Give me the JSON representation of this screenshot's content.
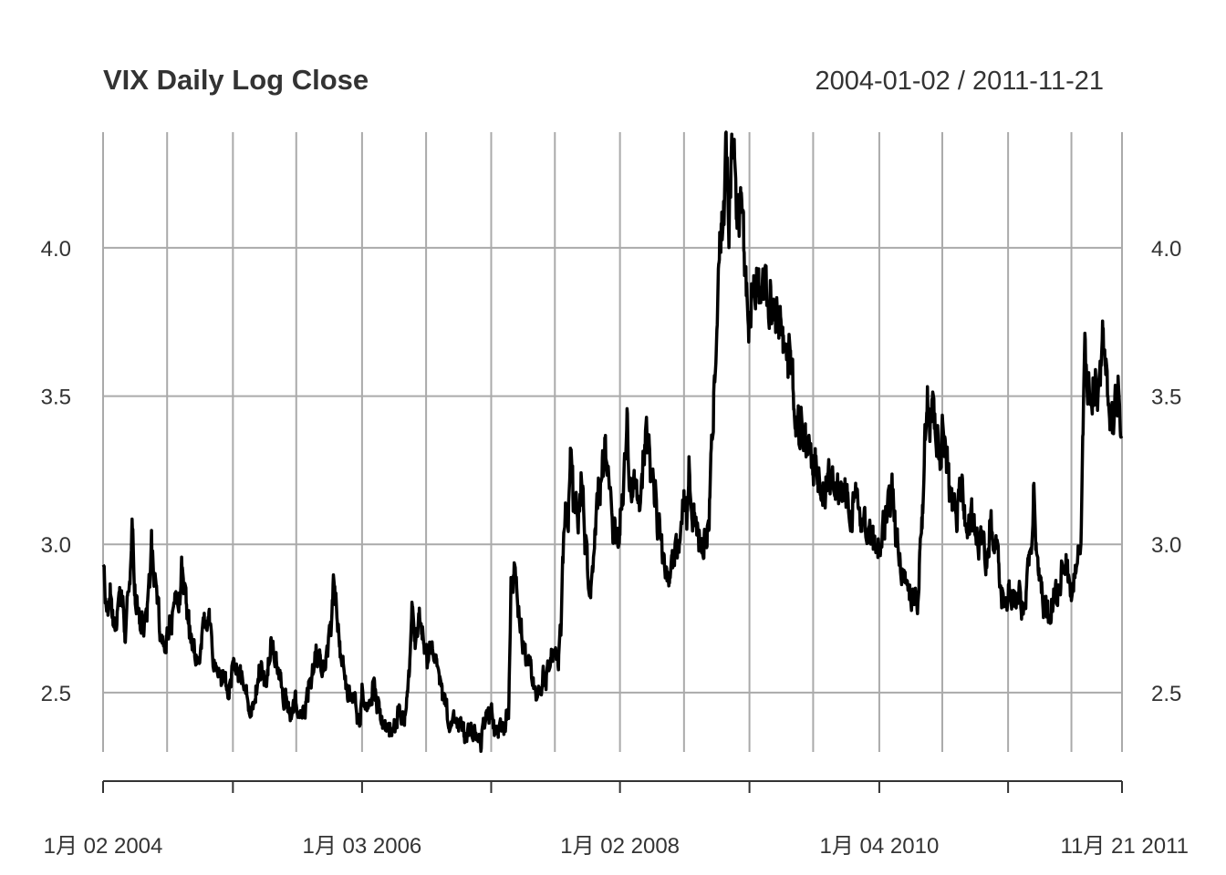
{
  "chart_data": {
    "type": "line",
    "title": "VIX Daily Log Close",
    "date_range": "2004-01-02 / 2011-11-21",
    "x_start": "2004-01-02",
    "x_end": "2011-11-21",
    "ylim": [
      2.3,
      4.39
    ],
    "y_ticks": [
      2.5,
      3.0,
      3.5,
      4.0
    ],
    "y_tick_labels": [
      "2.5",
      "3.0",
      "3.5",
      "4.0"
    ],
    "x_tick_labels": [
      {
        "date": "2004-01-02",
        "label": "1月 02 2004"
      },
      {
        "date": "2006-01-03",
        "label": "1月 03 2006"
      },
      {
        "date": "2008-01-02",
        "label": "1月 02 2008"
      },
      {
        "date": "2010-01-04",
        "label": "1月 04 2010"
      },
      {
        "date": "2011-11-21",
        "label": "11月 21 2011"
      }
    ],
    "x_gridlines": [
      "2004-01-02",
      "2004-07-01",
      "2005-01-03",
      "2005-07-01",
      "2006-01-03",
      "2006-07-03",
      "2007-01-03",
      "2007-07-02",
      "2008-01-02",
      "2008-07-01",
      "2009-01-02",
      "2009-07-01",
      "2010-01-04",
      "2010-07-01",
      "2011-01-03",
      "2011-07-01",
      "2011-11-21"
    ],
    "x_major_ticks": [
      "2004-01-02",
      "2005-01-03",
      "2006-01-03",
      "2007-01-03",
      "2008-01-02",
      "2009-01-02",
      "2010-01-04",
      "2011-01-03",
      "2011-11-21"
    ],
    "grid": true,
    "line_color": "#000000",
    "grid_color": "#aaaaaa",
    "series": [
      {
        "values": [
          [
            "2004-01-02",
            2.9
          ],
          [
            "2004-01-12",
            2.78
          ],
          [
            "2004-01-22",
            2.85
          ],
          [
            "2004-02-02",
            2.7
          ],
          [
            "2004-02-12",
            2.77
          ],
          [
            "2004-02-24",
            2.82
          ],
          [
            "2004-03-05",
            2.72
          ],
          [
            "2004-03-15",
            2.88
          ],
          [
            "2004-03-24",
            3.06
          ],
          [
            "2004-04-02",
            2.84
          ],
          [
            "2004-04-14",
            2.76
          ],
          [
            "2004-04-26",
            2.73
          ],
          [
            "2004-05-10",
            2.83
          ],
          [
            "2004-05-18",
            2.98
          ],
          [
            "2004-05-28",
            2.84
          ],
          [
            "2004-06-10",
            2.75
          ],
          [
            "2004-06-22",
            2.7
          ],
          [
            "2004-07-02",
            2.67
          ],
          [
            "2004-07-14",
            2.75
          ],
          [
            "2004-07-26",
            2.8
          ],
          [
            "2004-08-06",
            2.84
          ],
          [
            "2004-08-13",
            2.95
          ],
          [
            "2004-08-25",
            2.78
          ],
          [
            "2004-09-08",
            2.7
          ],
          [
            "2004-09-20",
            2.63
          ],
          [
            "2004-10-01",
            2.66
          ],
          [
            "2004-10-14",
            2.72
          ],
          [
            "2004-10-25",
            2.78
          ],
          [
            "2004-11-08",
            2.62
          ],
          [
            "2004-11-22",
            2.58
          ],
          [
            "2004-12-06",
            2.57
          ],
          [
            "2004-12-20",
            2.52
          ],
          [
            "2005-01-03",
            2.55
          ],
          [
            "2005-01-14",
            2.6
          ],
          [
            "2005-01-28",
            2.55
          ],
          [
            "2005-02-10",
            2.5
          ],
          [
            "2005-02-25",
            2.46
          ],
          [
            "2005-03-10",
            2.53
          ],
          [
            "2005-03-24",
            2.6
          ],
          [
            "2005-04-06",
            2.5
          ],
          [
            "2005-04-15",
            2.62
          ],
          [
            "2005-04-28",
            2.67
          ],
          [
            "2005-05-10",
            2.58
          ],
          [
            "2005-05-24",
            2.52
          ],
          [
            "2005-06-07",
            2.45
          ],
          [
            "2005-06-21",
            2.43
          ],
          [
            "2005-07-01",
            2.48
          ],
          [
            "2005-07-15",
            2.42
          ],
          [
            "2005-07-29",
            2.46
          ],
          [
            "2005-08-12",
            2.55
          ],
          [
            "2005-08-26",
            2.63
          ],
          [
            "2005-09-09",
            2.58
          ],
          [
            "2005-09-23",
            2.62
          ],
          [
            "2005-10-07",
            2.7
          ],
          [
            "2005-10-14",
            2.85
          ],
          [
            "2005-10-21",
            2.8
          ],
          [
            "2005-11-01",
            2.65
          ],
          [
            "2005-11-15",
            2.53
          ],
          [
            "2005-11-30",
            2.48
          ],
          [
            "2005-12-14",
            2.45
          ],
          [
            "2005-12-28",
            2.4
          ],
          [
            "2006-01-03",
            2.5
          ],
          [
            "2006-01-13",
            2.45
          ],
          [
            "2006-01-24",
            2.48
          ],
          [
            "2006-02-07",
            2.52
          ],
          [
            "2006-02-22",
            2.43
          ],
          [
            "2006-03-08",
            2.4
          ],
          [
            "2006-03-22",
            2.36
          ],
          [
            "2006-04-05",
            2.38
          ],
          [
            "2006-04-19",
            2.45
          ],
          [
            "2006-05-03",
            2.4
          ],
          [
            "2006-05-17",
            2.58
          ],
          [
            "2006-05-24",
            2.75
          ],
          [
            "2006-06-02",
            2.68
          ],
          [
            "2006-06-13",
            2.78
          ],
          [
            "2006-06-26",
            2.7
          ],
          [
            "2006-07-07",
            2.62
          ],
          [
            "2006-07-20",
            2.66
          ],
          [
            "2006-08-02",
            2.58
          ],
          [
            "2006-08-16",
            2.5
          ],
          [
            "2006-08-30",
            2.45
          ],
          [
            "2006-09-13",
            2.4
          ],
          [
            "2006-09-27",
            2.42
          ],
          [
            "2006-10-11",
            2.38
          ],
          [
            "2006-10-25",
            2.35
          ],
          [
            "2006-11-08",
            2.4
          ],
          [
            "2006-11-22",
            2.36
          ],
          [
            "2006-12-06",
            2.33
          ],
          [
            "2006-12-20",
            2.4
          ],
          [
            "2007-01-03",
            2.45
          ],
          [
            "2007-01-19",
            2.36
          ],
          [
            "2007-02-05",
            2.38
          ],
          [
            "2007-02-21",
            2.42
          ],
          [
            "2007-02-28",
            2.85
          ],
          [
            "2007-03-06",
            2.9
          ],
          [
            "2007-03-14",
            2.93
          ],
          [
            "2007-03-23",
            2.78
          ],
          [
            "2007-04-05",
            2.65
          ],
          [
            "2007-04-19",
            2.6
          ],
          [
            "2007-05-03",
            2.55
          ],
          [
            "2007-05-17",
            2.5
          ],
          [
            "2007-05-31",
            2.55
          ],
          [
            "2007-06-14",
            2.58
          ],
          [
            "2007-06-27",
            2.63
          ],
          [
            "2007-07-11",
            2.58
          ],
          [
            "2007-07-20",
            2.75
          ],
          [
            "2007-07-26",
            3.0
          ],
          [
            "2007-08-01",
            3.12
          ],
          [
            "2007-08-08",
            3.05
          ],
          [
            "2007-08-16",
            3.35
          ],
          [
            "2007-08-23",
            3.15
          ],
          [
            "2007-09-04",
            3.1
          ],
          [
            "2007-09-14",
            3.22
          ],
          [
            "2007-09-25",
            3.0
          ],
          [
            "2007-10-05",
            2.9
          ],
          [
            "2007-10-12",
            2.88
          ],
          [
            "2007-10-22",
            3.05
          ],
          [
            "2007-11-01",
            3.15
          ],
          [
            "2007-11-13",
            3.25
          ],
          [
            "2007-11-21",
            3.35
          ],
          [
            "2007-12-03",
            3.12
          ],
          [
            "2007-12-14",
            3.05
          ],
          [
            "2007-12-27",
            3.0
          ],
          [
            "2008-01-02",
            3.1
          ],
          [
            "2008-01-10",
            3.15
          ],
          [
            "2008-01-22",
            3.4
          ],
          [
            "2008-02-01",
            3.2
          ],
          [
            "2008-02-13",
            3.22
          ],
          [
            "2008-02-27",
            3.15
          ],
          [
            "2008-03-10",
            3.3
          ],
          [
            "2008-03-17",
            3.38
          ],
          [
            "2008-03-28",
            3.25
          ],
          [
            "2008-04-10",
            3.15
          ],
          [
            "2008-04-24",
            3.05
          ],
          [
            "2008-05-07",
            2.95
          ],
          [
            "2008-05-20",
            2.88
          ],
          [
            "2008-06-03",
            2.95
          ],
          [
            "2008-06-16",
            3.0
          ],
          [
            "2008-06-30",
            3.12
          ],
          [
            "2008-07-10",
            3.1
          ],
          [
            "2008-07-15",
            3.25
          ],
          [
            "2008-07-25",
            3.1
          ],
          [
            "2008-08-07",
            3.05
          ],
          [
            "2008-08-20",
            3.02
          ],
          [
            "2008-09-02",
            3.05
          ],
          [
            "2008-09-10",
            3.08
          ],
          [
            "2008-09-17",
            3.45
          ],
          [
            "2008-09-29",
            3.6
          ],
          [
            "2008-10-06",
            3.85
          ],
          [
            "2008-10-10",
            4.1
          ],
          [
            "2008-10-20",
            4.05
          ],
          [
            "2008-10-27",
            4.3
          ],
          [
            "2008-11-05",
            4.05
          ],
          [
            "2008-11-12",
            4.25
          ],
          [
            "2008-11-20",
            4.38
          ],
          [
            "2008-11-28",
            4.05
          ],
          [
            "2008-12-08",
            4.15
          ],
          [
            "2008-12-19",
            3.98
          ],
          [
            "2008-12-31",
            3.75
          ],
          [
            "2009-01-08",
            3.8
          ],
          [
            "2009-01-21",
            3.9
          ],
          [
            "2009-02-02",
            3.78
          ],
          [
            "2009-02-12",
            3.85
          ],
          [
            "2009-02-23",
            3.8
          ],
          [
            "2009-03-03",
            3.88
          ],
          [
            "2009-03-09",
            3.8
          ],
          [
            "2009-03-19",
            3.78
          ],
          [
            "2009-03-31",
            3.72
          ],
          [
            "2009-04-14",
            3.65
          ],
          [
            "2009-04-28",
            3.6
          ],
          [
            "2009-05-12",
            3.45
          ],
          [
            "2009-05-26",
            3.4
          ],
          [
            "2009-06-09",
            3.35
          ],
          [
            "2009-06-23",
            3.3
          ],
          [
            "2009-07-01",
            3.28
          ],
          [
            "2009-07-13",
            3.25
          ],
          [
            "2009-07-27",
            3.22
          ],
          [
            "2009-08-10",
            3.2
          ],
          [
            "2009-08-24",
            3.22
          ],
          [
            "2009-09-08",
            3.18
          ],
          [
            "2009-09-21",
            3.15
          ],
          [
            "2009-10-05",
            3.2
          ],
          [
            "2009-10-19",
            3.1
          ],
          [
            "2009-11-02",
            3.15
          ],
          [
            "2009-11-16",
            3.12
          ],
          [
            "2009-12-01",
            3.05
          ],
          [
            "2009-12-15",
            3.0
          ],
          [
            "2009-12-29",
            2.98
          ],
          [
            "2010-01-04",
            3.0
          ],
          [
            "2010-01-19",
            3.05
          ],
          [
            "2010-02-03",
            3.12
          ],
          [
            "2010-02-10",
            3.18
          ],
          [
            "2010-02-24",
            3.0
          ],
          [
            "2010-03-10",
            2.9
          ],
          [
            "2010-03-24",
            2.85
          ],
          [
            "2010-04-07",
            2.82
          ],
          [
            "2010-04-21",
            2.8
          ],
          [
            "2010-05-06",
            3.1
          ],
          [
            "2010-05-11",
            3.3
          ],
          [
            "2010-05-20",
            3.55
          ],
          [
            "2010-05-27",
            3.4
          ],
          [
            "2010-06-08",
            3.45
          ],
          [
            "2010-06-21",
            3.3
          ],
          [
            "2010-07-01",
            3.4
          ],
          [
            "2010-07-15",
            3.25
          ],
          [
            "2010-07-28",
            3.15
          ],
          [
            "2010-08-10",
            3.1
          ],
          [
            "2010-08-24",
            3.2
          ],
          [
            "2010-09-08",
            3.05
          ],
          [
            "2010-09-22",
            3.1
          ],
          [
            "2010-10-06",
            3.05
          ],
          [
            "2010-10-20",
            3.0
          ],
          [
            "2010-11-03",
            2.95
          ],
          [
            "2010-11-16",
            3.05
          ],
          [
            "2010-11-30",
            3.0
          ],
          [
            "2010-12-14",
            2.85
          ],
          [
            "2010-12-28",
            2.8
          ],
          [
            "2011-01-03",
            2.85
          ],
          [
            "2011-01-18",
            2.8
          ],
          [
            "2011-02-01",
            2.82
          ],
          [
            "2011-02-15",
            2.78
          ],
          [
            "2011-02-28",
            2.9
          ],
          [
            "2011-03-10",
            3.0
          ],
          [
            "2011-03-16",
            3.2
          ],
          [
            "2011-03-25",
            2.95
          ],
          [
            "2011-04-07",
            2.85
          ],
          [
            "2011-04-21",
            2.78
          ],
          [
            "2011-05-05",
            2.8
          ],
          [
            "2011-05-18",
            2.82
          ],
          [
            "2011-06-01",
            2.88
          ],
          [
            "2011-06-15",
            2.95
          ],
          [
            "2011-06-29",
            2.85
          ],
          [
            "2011-07-13",
            2.9
          ],
          [
            "2011-07-27",
            3.0
          ],
          [
            "2011-08-04",
            3.45
          ],
          [
            "2011-08-08",
            3.75
          ],
          [
            "2011-08-15",
            3.55
          ],
          [
            "2011-08-24",
            3.5
          ],
          [
            "2011-09-06",
            3.55
          ],
          [
            "2011-09-16",
            3.45
          ],
          [
            "2011-09-30",
            3.7
          ],
          [
            "2011-10-04",
            3.65
          ],
          [
            "2011-10-14",
            3.45
          ],
          [
            "2011-10-25",
            3.4
          ],
          [
            "2011-11-02",
            3.45
          ],
          [
            "2011-11-10",
            3.5
          ],
          [
            "2011-11-21",
            3.45
          ]
        ]
      }
    ]
  }
}
